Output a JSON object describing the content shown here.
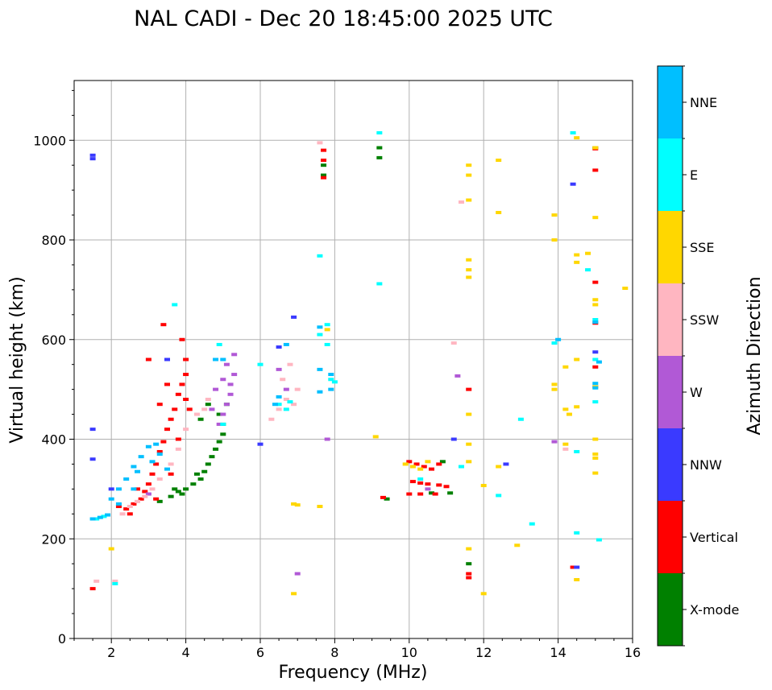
{
  "chart_data": {
    "type": "scatter",
    "title": "NAL CADI - Dec 20 18:45:00 2025 UTC",
    "xlabel": "Frequency (MHz)",
    "ylabel": "Virtual height (km)",
    "xlim": [
      1,
      16
    ],
    "ylim": [
      0,
      1120
    ],
    "xticks": [
      2,
      4,
      6,
      8,
      10,
      12,
      14,
      16
    ],
    "yticks": [
      0,
      200,
      400,
      600,
      800,
      1000
    ],
    "grid": true,
    "colorbar": {
      "label": "Azimuth Direction",
      "categories": [
        {
          "name": "X-mode",
          "color": "#008000"
        },
        {
          "name": "Vertical",
          "color": "#ff0000"
        },
        {
          "name": "NNW",
          "color": "#3a3aff"
        },
        {
          "name": "W",
          "color": "#b159d6"
        },
        {
          "name": "SSW",
          "color": "#ffb6c1"
        },
        {
          "name": "SSE",
          "color": "#ffd700"
        },
        {
          "name": "E",
          "color": "#00ffff"
        },
        {
          "name": "NNE",
          "color": "#00bfff"
        }
      ]
    },
    "series": [
      {
        "name": "X-mode",
        "points": [
          [
            3.3,
            275
          ],
          [
            3.6,
            285
          ],
          [
            3.8,
            295
          ],
          [
            4.0,
            300
          ],
          [
            4.2,
            310
          ],
          [
            4.4,
            320
          ],
          [
            4.5,
            335
          ],
          [
            4.6,
            350
          ],
          [
            4.7,
            365
          ],
          [
            4.8,
            380
          ],
          [
            4.9,
            395
          ],
          [
            5.0,
            410
          ],
          [
            5.0,
            430
          ],
          [
            4.9,
            450
          ],
          [
            5.1,
            470
          ],
          [
            4.6,
            470
          ],
          [
            4.4,
            440
          ],
          [
            3.7,
            300
          ],
          [
            3.9,
            290
          ],
          [
            4.3,
            330
          ],
          [
            7.7,
            950
          ],
          [
            7.7,
            930
          ],
          [
            9.2,
            965
          ],
          [
            9.2,
            985
          ],
          [
            10.6,
            292
          ],
          [
            11.1,
            292
          ],
          [
            11.6,
            150
          ],
          [
            15.0,
            985
          ],
          [
            10.9,
            355
          ],
          [
            9.4,
            280
          ]
        ]
      },
      {
        "name": "Vertical",
        "points": [
          [
            1.5,
            100
          ],
          [
            2.2,
            265
          ],
          [
            2.4,
            260
          ],
          [
            2.6,
            270
          ],
          [
            2.8,
            280
          ],
          [
            2.9,
            295
          ],
          [
            3.0,
            310
          ],
          [
            3.1,
            330
          ],
          [
            3.2,
            350
          ],
          [
            3.3,
            375
          ],
          [
            3.4,
            395
          ],
          [
            3.5,
            420
          ],
          [
            3.6,
            440
          ],
          [
            3.7,
            460
          ],
          [
            3.8,
            490
          ],
          [
            3.9,
            510
          ],
          [
            4.0,
            530
          ],
          [
            4.0,
            560
          ],
          [
            3.9,
            600
          ],
          [
            3.4,
            630
          ],
          [
            3.5,
            510
          ],
          [
            3.2,
            280
          ],
          [
            3.6,
            330
          ],
          [
            3.8,
            400
          ],
          [
            4.0,
            480
          ],
          [
            4.1,
            460
          ],
          [
            3.3,
            470
          ],
          [
            3.0,
            560
          ],
          [
            7.7,
            980
          ],
          [
            7.7,
            960
          ],
          [
            7.7,
            925
          ],
          [
            10.0,
            355
          ],
          [
            10.2,
            350
          ],
          [
            10.4,
            345
          ],
          [
            10.6,
            340
          ],
          [
            10.8,
            350
          ],
          [
            10.1,
            315
          ],
          [
            10.3,
            312
          ],
          [
            10.5,
            310
          ],
          [
            10.8,
            308
          ],
          [
            11.0,
            305
          ],
          [
            10.0,
            290
          ],
          [
            10.3,
            290
          ],
          [
            10.7,
            290
          ],
          [
            9.3,
            283
          ],
          [
            11.6,
            130
          ],
          [
            11.6,
            122
          ],
          [
            11.6,
            500
          ],
          [
            15.0,
            940
          ],
          [
            15.0,
            715
          ],
          [
            15.0,
            545
          ],
          [
            15.0,
            505
          ],
          [
            14.4,
            143
          ],
          [
            15.0,
            983
          ],
          [
            15.0,
            633
          ],
          [
            2.5,
            250
          ],
          [
            2.7,
            300
          ]
        ]
      },
      {
        "name": "NNW",
        "points": [
          [
            1.5,
            970
          ],
          [
            1.5,
            963
          ],
          [
            1.5,
            360
          ],
          [
            1.5,
            420
          ],
          [
            2.0,
            300
          ],
          [
            6.0,
            390
          ],
          [
            6.5,
            585
          ],
          [
            6.9,
            645
          ],
          [
            11.2,
            400
          ],
          [
            12.6,
            350
          ],
          [
            14.4,
            912
          ],
          [
            14.5,
            143
          ],
          [
            3.5,
            560
          ],
          [
            15.0,
            575
          ]
        ]
      },
      {
        "name": "W",
        "points": [
          [
            4.9,
            430
          ],
          [
            5.0,
            450
          ],
          [
            5.1,
            470
          ],
          [
            5.2,
            490
          ],
          [
            5.2,
            510
          ],
          [
            5.3,
            530
          ],
          [
            5.1,
            550
          ],
          [
            4.8,
            500
          ],
          [
            4.7,
            460
          ],
          [
            5.0,
            520
          ],
          [
            6.5,
            540
          ],
          [
            6.7,
            500
          ],
          [
            7.0,
            130
          ],
          [
            7.8,
            400
          ],
          [
            10.5,
            300
          ],
          [
            11.3,
            527
          ],
          [
            13.9,
            395
          ],
          [
            5.3,
            570
          ],
          [
            3.0,
            290
          ]
        ]
      },
      {
        "name": "SSW",
        "points": [
          [
            1.6,
            115
          ],
          [
            2.1,
            115
          ],
          [
            2.3,
            250
          ],
          [
            2.5,
            265
          ],
          [
            2.7,
            275
          ],
          [
            2.9,
            285
          ],
          [
            3.1,
            300
          ],
          [
            3.3,
            320
          ],
          [
            3.6,
            350
          ],
          [
            4.0,
            420
          ],
          [
            4.3,
            450
          ],
          [
            4.6,
            480
          ],
          [
            6.3,
            440
          ],
          [
            6.5,
            460
          ],
          [
            6.7,
            480
          ],
          [
            6.9,
            470
          ],
          [
            7.0,
            500
          ],
          [
            6.6,
            520
          ],
          [
            11.2,
            593
          ],
          [
            11.4,
            876
          ],
          [
            14.2,
            380
          ],
          [
            3.8,
            380
          ],
          [
            4.5,
            460
          ],
          [
            7.6,
            995
          ],
          [
            6.8,
            550
          ]
        ]
      },
      {
        "name": "SSE",
        "points": [
          [
            6.9,
            270
          ],
          [
            7.0,
            268
          ],
          [
            6.9,
            90
          ],
          [
            7.6,
            265
          ],
          [
            9.1,
            405
          ],
          [
            9.9,
            350
          ],
          [
            10.1,
            345
          ],
          [
            10.3,
            340
          ],
          [
            10.5,
            355
          ],
          [
            11.6,
            930
          ],
          [
            11.6,
            950
          ],
          [
            11.6,
            880
          ],
          [
            11.6,
            760
          ],
          [
            11.6,
            740
          ],
          [
            11.6,
            725
          ],
          [
            11.6,
            450
          ],
          [
            11.6,
            390
          ],
          [
            11.6,
            355
          ],
          [
            11.6,
            180
          ],
          [
            12.0,
            90
          ],
          [
            12.0,
            307
          ],
          [
            12.4,
            960
          ],
          [
            12.4,
            855
          ],
          [
            12.4,
            345
          ],
          [
            12.9,
            187
          ],
          [
            13.9,
            800
          ],
          [
            13.9,
            850
          ],
          [
            13.9,
            510
          ],
          [
            13.9,
            500
          ],
          [
            14.2,
            545
          ],
          [
            14.2,
            390
          ],
          [
            14.2,
            460
          ],
          [
            14.3,
            450
          ],
          [
            14.5,
            1005
          ],
          [
            14.5,
            770
          ],
          [
            14.5,
            755
          ],
          [
            14.5,
            560
          ],
          [
            14.5,
            465
          ],
          [
            14.5,
            118
          ],
          [
            14.8,
            773
          ],
          [
            15.0,
            985
          ],
          [
            15.0,
            845
          ],
          [
            15.0,
            680
          ],
          [
            15.0,
            670
          ],
          [
            15.0,
            400
          ],
          [
            15.0,
            370
          ],
          [
            15.0,
            362
          ],
          [
            15.0,
            332
          ],
          [
            15.0,
            505
          ],
          [
            15.8,
            703
          ],
          [
            7.8,
            620
          ],
          [
            2.0,
            180
          ]
        ]
      },
      {
        "name": "E",
        "points": [
          [
            1.6,
            240
          ],
          [
            1.8,
            245
          ],
          [
            2.1,
            110
          ],
          [
            4.9,
            590
          ],
          [
            5.0,
            430
          ],
          [
            6.5,
            470
          ],
          [
            6.7,
            460
          ],
          [
            6.8,
            475
          ],
          [
            7.6,
            768
          ],
          [
            7.6,
            610
          ],
          [
            7.8,
            630
          ],
          [
            7.8,
            590
          ],
          [
            7.9,
            520
          ],
          [
            8.0,
            515
          ],
          [
            9.2,
            1015
          ],
          [
            9.2,
            712
          ],
          [
            10.3,
            320
          ],
          [
            11.4,
            345
          ],
          [
            12.4,
            287
          ],
          [
            13.0,
            440
          ],
          [
            13.3,
            230
          ],
          [
            13.9,
            593
          ],
          [
            14.4,
            1015
          ],
          [
            14.5,
            375
          ],
          [
            14.5,
            212
          ],
          [
            14.8,
            740
          ],
          [
            15.0,
            560
          ],
          [
            15.0,
            475
          ],
          [
            15.0,
            640
          ],
          [
            15.1,
            198
          ],
          [
            6.0,
            550
          ],
          [
            3.7,
            670
          ]
        ]
      },
      {
        "name": "NNE",
        "points": [
          [
            1.5,
            240
          ],
          [
            1.7,
            243
          ],
          [
            1.9,
            248
          ],
          [
            2.0,
            280
          ],
          [
            2.2,
            300
          ],
          [
            2.4,
            320
          ],
          [
            2.6,
            345
          ],
          [
            2.8,
            365
          ],
          [
            3.0,
            385
          ],
          [
            3.2,
            390
          ],
          [
            3.3,
            370
          ],
          [
            3.5,
            340
          ],
          [
            2.2,
            270
          ],
          [
            2.6,
            300
          ],
          [
            6.4,
            470
          ],
          [
            6.5,
            485
          ],
          [
            6.7,
            590
          ],
          [
            7.6,
            540
          ],
          [
            7.6,
            625
          ],
          [
            7.9,
            530
          ],
          [
            7.9,
            500
          ],
          [
            7.6,
            495
          ],
          [
            4.8,
            560
          ],
          [
            5.0,
            560
          ],
          [
            2.7,
            335
          ],
          [
            3.1,
            355
          ],
          [
            15.0,
            512
          ],
          [
            15.0,
            503
          ],
          [
            14.0,
            600
          ],
          [
            15.0,
            635
          ],
          [
            15.1,
            555
          ]
        ]
      }
    ]
  }
}
